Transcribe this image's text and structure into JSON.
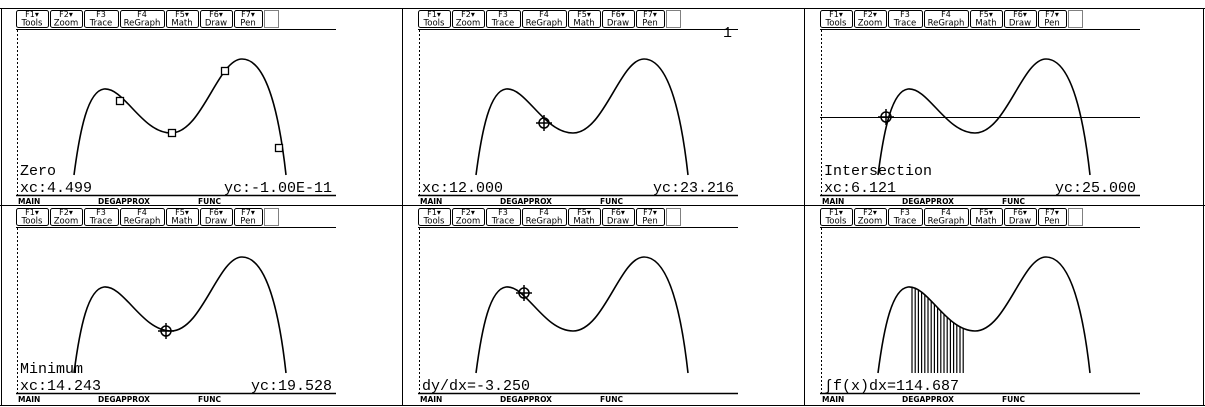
{
  "toolbar": [
    {
      "key": "F1▾",
      "label": "Tools"
    },
    {
      "key": "F2▾",
      "label": "Zoom"
    },
    {
      "key": "F3",
      "label": "Trace"
    },
    {
      "key": "F4",
      "label": "ReGraph"
    },
    {
      "key": "F5▾",
      "label": "Math"
    },
    {
      "key": "F6▾",
      "label": "Draw"
    },
    {
      "key": "F7▾",
      "label": "Pen"
    }
  ],
  "status": [
    "MAIN",
    "DEGAPPROX",
    "FUNC"
  ],
  "screens": [
    {
      "message": "Zero",
      "xc": "xc:4.499",
      "yc": "yc:-1.00E-11"
    },
    {
      "corner": "1",
      "xc": "xc:12.000",
      "yc": "yc:23.216"
    },
    {
      "message": "Intersection",
      "xc": "xc:6.121",
      "yc": "yc:25.000"
    },
    {
      "message": "Minimum",
      "xc": "xc:14.243",
      "yc": "yc:19.528"
    },
    {
      "readout": "dy/dx=-3.250"
    },
    {
      "readout": "∫f(x)dx=114.687"
    }
  ]
}
